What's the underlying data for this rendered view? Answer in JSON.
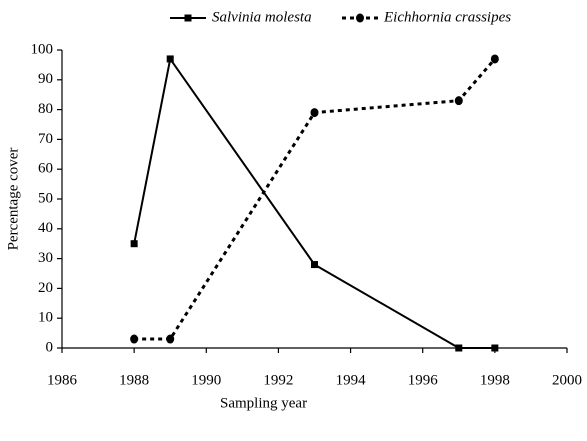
{
  "chart_data": {
    "type": "line",
    "x_label": "Sampling year",
    "y_label": "Percentage cover",
    "x": [
      1988,
      1989,
      1993,
      1997,
      1998
    ],
    "series": [
      {
        "name": "Salvinia molesta",
        "color": "#000000",
        "marker": "square",
        "dashed": false,
        "values": [
          35,
          97,
          28,
          0,
          0
        ]
      },
      {
        "name": "Eichhornia crassipes",
        "color": "#000000",
        "marker": "circle",
        "dashed": true,
        "values": [
          3,
          3,
          79,
          83,
          97
        ]
      }
    ],
    "xlim": [
      1986,
      2000
    ],
    "xticks": [
      1986,
      1988,
      1990,
      1992,
      1994,
      1996,
      1998,
      2000
    ],
    "ylim": [
      0,
      100
    ],
    "yticks": [
      0,
      10,
      20,
      30,
      40,
      50,
      60,
      70,
      80,
      90,
      100
    ],
    "legend": "top"
  }
}
